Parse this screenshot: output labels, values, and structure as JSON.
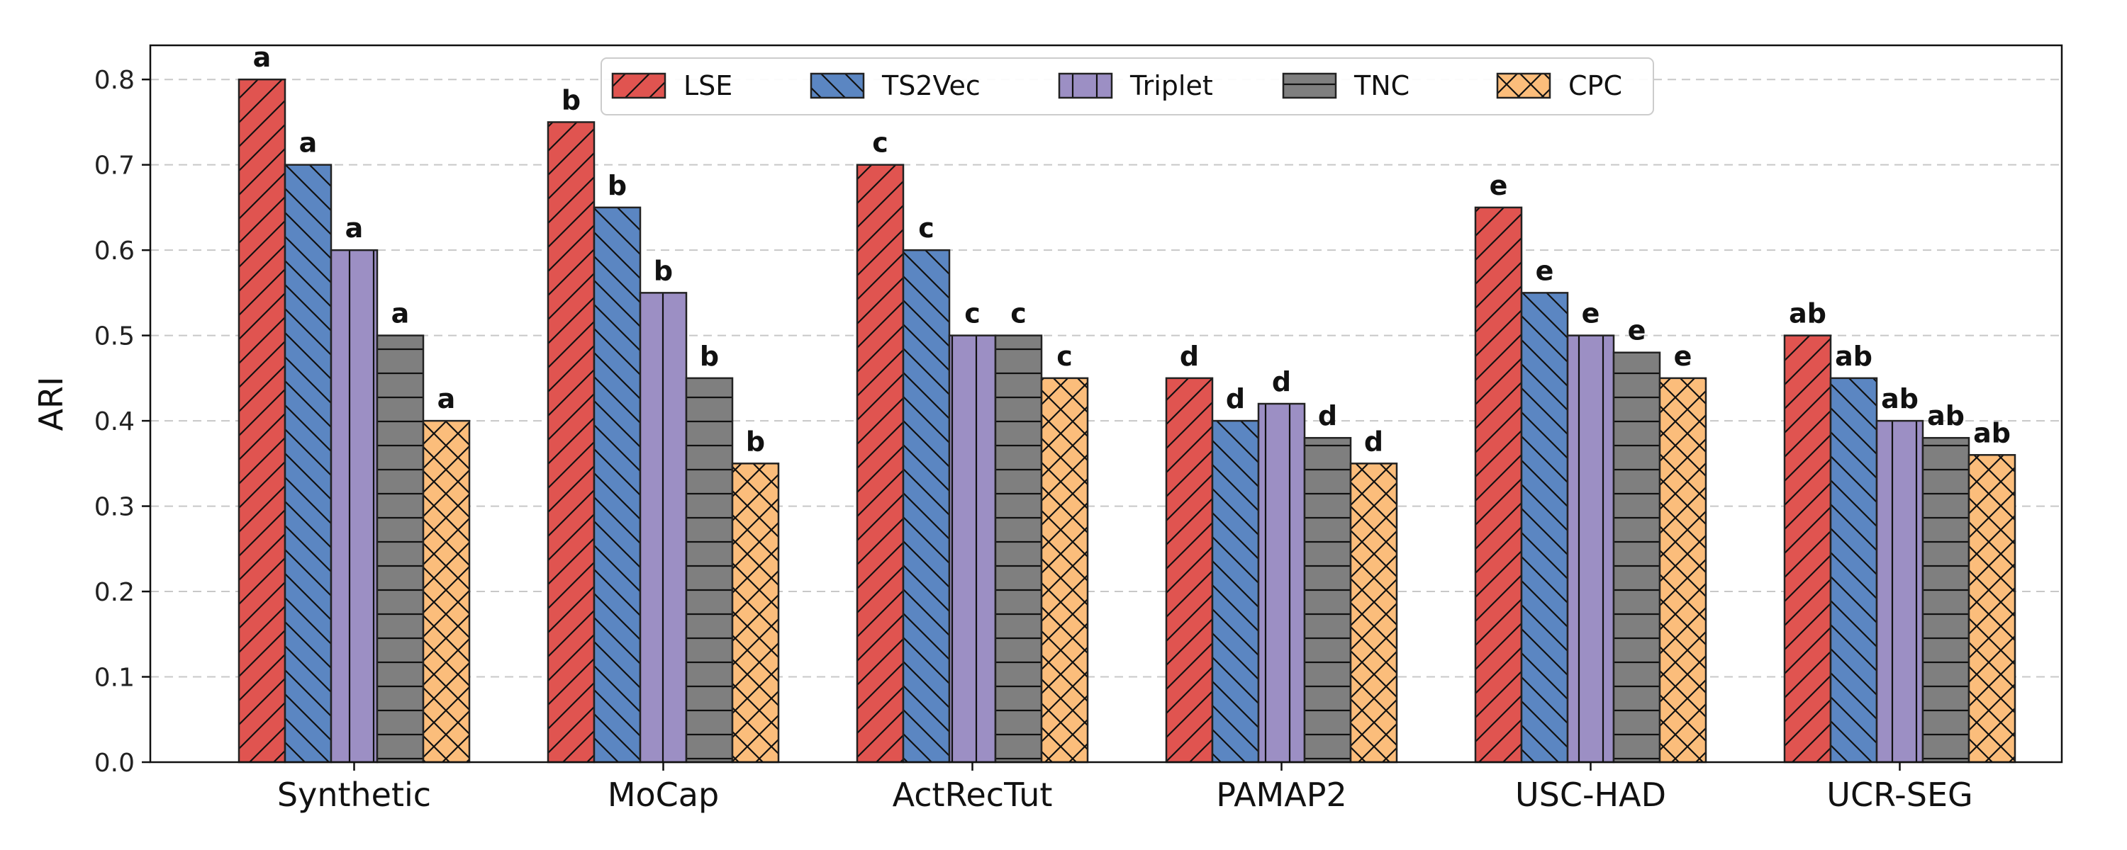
{
  "chart_data": {
    "type": "bar",
    "categories": [
      "Synthetic",
      "MoCap",
      "ActRecTut",
      "PAMAP2",
      "USC-HAD",
      "UCR-SEG"
    ],
    "series": [
      {
        "name": "LSE",
        "values": [
          0.8,
          0.75,
          0.7,
          0.45,
          0.65,
          0.5
        ],
        "color": "#e05450",
        "hatch": "diag-forward"
      },
      {
        "name": "TS2Vec",
        "values": [
          0.7,
          0.65,
          0.6,
          0.4,
          0.55,
          0.45
        ],
        "color": "#5b86c2",
        "hatch": "diag-back"
      },
      {
        "name": "Triplet",
        "values": [
          0.6,
          0.55,
          0.5,
          0.42,
          0.5,
          0.4
        ],
        "color": "#9c8fc4",
        "hatch": "vertical"
      },
      {
        "name": "TNC",
        "values": [
          0.5,
          0.45,
          0.5,
          0.38,
          0.48,
          0.38
        ],
        "color": "#7f7f7f",
        "hatch": "horizontal"
      },
      {
        "name": "CPC",
        "values": [
          0.4,
          0.35,
          0.45,
          0.35,
          0.45,
          0.36
        ],
        "color": "#fbbd7b",
        "hatch": "crosshatch"
      }
    ],
    "bar_labels": [
      [
        "a",
        "a",
        "a",
        "a",
        "a"
      ],
      [
        "b",
        "b",
        "b",
        "b",
        "b"
      ],
      [
        "c",
        "c",
        "c",
        "c",
        "c"
      ],
      [
        "d",
        "d",
        "d",
        "d",
        "d"
      ],
      [
        "e",
        "e",
        "e",
        "e",
        "e"
      ],
      [
        "ab",
        "ab",
        "ab",
        "ab",
        "ab"
      ]
    ],
    "title": "",
    "xlabel": "",
    "ylabel": "ARI",
    "ylim": [
      0,
      0.84
    ],
    "yticks": [
      "0.0",
      "0.1",
      "0.2",
      "0.3",
      "0.4",
      "0.5",
      "0.6",
      "0.7",
      "0.8"
    ],
    "grid": "y-dashed",
    "legend_placement": "top-center"
  }
}
